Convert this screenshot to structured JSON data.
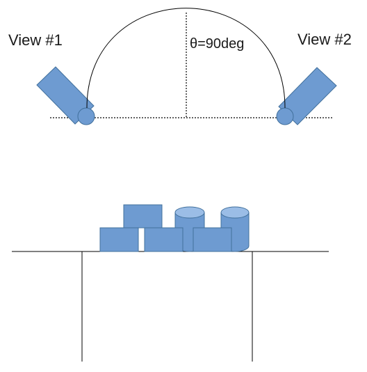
{
  "labels": {
    "view1": "View #1",
    "view2": "View #2",
    "angle": "θ=90deg"
  },
  "colors": {
    "fill": "#6e9bd1",
    "stroke": "#41709c",
    "cyl_top": "#9bbde6",
    "line": "#000000"
  }
}
